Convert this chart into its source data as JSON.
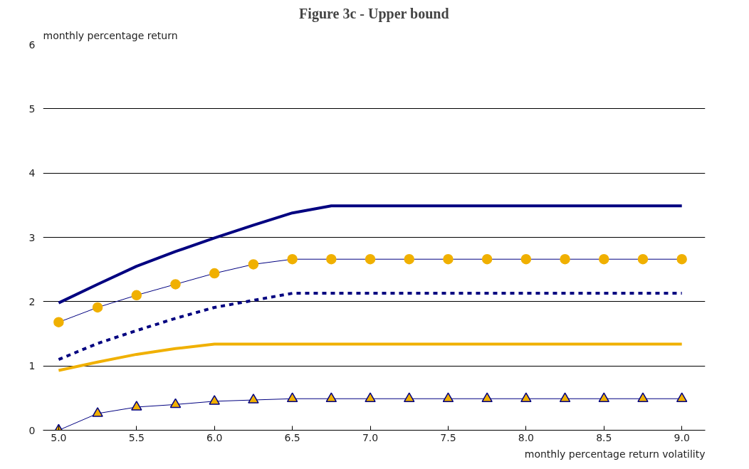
{
  "chart_data": {
    "type": "line",
    "title": "Figure 3c - Upper bound",
    "xlabel": "monthly percentage return volatility",
    "ylabel": "monthly percentage return",
    "x": [
      5.0,
      5.25,
      5.5,
      5.75,
      6.0,
      6.25,
      6.5,
      6.75,
      7.0,
      7.25,
      7.5,
      7.75,
      8.0,
      8.25,
      8.5,
      8.75,
      9.0
    ],
    "series": [
      {
        "color": "#000080",
        "line_style": "solid",
        "marker": "none",
        "values": [
          1.98,
          2.27,
          2.55,
          2.78,
          2.99,
          3.19,
          3.38,
          3.49,
          3.49,
          3.49,
          3.49,
          3.49,
          3.49,
          3.49,
          3.49,
          3.49,
          3.49
        ]
      },
      {
        "color": "#000080",
        "line_style": "solid",
        "marker": "circle",
        "colors": [
          "#f0b000",
          "#f0b000",
          "#f0b000",
          "#f0b000",
          "#f0b000",
          "#f0b000",
          "#f0b000",
          "#f0b000",
          "#f0b000",
          "#f0b000",
          "#f0b000",
          "#f0b000",
          "#f0b000",
          "#f0b000",
          "#f0b000",
          "#f0b000",
          "#f0b000"
        ],
        "values": [
          1.68,
          1.91,
          2.1,
          2.27,
          2.44,
          2.58,
          2.66,
          2.66,
          2.66,
          2.66,
          2.66,
          2.66,
          2.66,
          2.66,
          2.66,
          2.66,
          2.66
        ]
      },
      {
        "color": "#000080",
        "line_style": "dashed",
        "marker": "none",
        "values": [
          1.1,
          1.35,
          1.55,
          1.74,
          1.91,
          2.02,
          2.13,
          2.13,
          2.13,
          2.13,
          2.13,
          2.13,
          2.13,
          2.13,
          2.13,
          2.13,
          2.13
        ]
      },
      {
        "color": "#f0b000",
        "line_style": "solid",
        "marker": "none",
        "values": [
          0.93,
          1.06,
          1.18,
          1.27,
          1.34,
          1.34,
          1.34,
          1.34,
          1.34,
          1.34,
          1.34,
          1.34,
          1.34,
          1.34,
          1.34,
          1.34,
          1.34
        ]
      },
      {
        "color": "#000080",
        "line_style": "solid",
        "marker": "triangle",
        "colors": [
          "#f0b000",
          "#f0b000",
          "#f0b000",
          "#f0b000",
          "#f0b000",
          "#f0b000",
          "#f0b000",
          "#f0b000",
          "#f0b000",
          "#f0b000",
          "#f0b000",
          "#f0b000",
          "#f0b000",
          "#f0b000",
          "#f0b000",
          "#f0b000",
          "#f0b000"
        ],
        "values": [
          0.0,
          0.26,
          0.36,
          0.4,
          0.45,
          0.47,
          0.49,
          0.49,
          0.49,
          0.49,
          0.49,
          0.49,
          0.49,
          0.49,
          0.49,
          0.49,
          0.49
        ]
      }
    ],
    "xlim": [
      4.9,
      9.15
    ],
    "xticks": [
      {
        "value": 5.0,
        "label": "5.0"
      },
      {
        "value": 5.5,
        "label": "5.5"
      },
      {
        "value": 6.0,
        "label": "6.0"
      },
      {
        "value": 6.5,
        "label": "6.5"
      },
      {
        "value": 7.0,
        "label": "7.0"
      },
      {
        "value": 7.5,
        "label": "7.5"
      },
      {
        "value": 8.0,
        "label": "8.0"
      },
      {
        "value": 8.5,
        "label": "8.5"
      },
      {
        "value": 9.0,
        "label": "9.0"
      }
    ],
    "ylim": [
      0,
      6
    ],
    "yticks": [
      0,
      1,
      2,
      3,
      4,
      5,
      6
    ],
    "grid": "y"
  }
}
